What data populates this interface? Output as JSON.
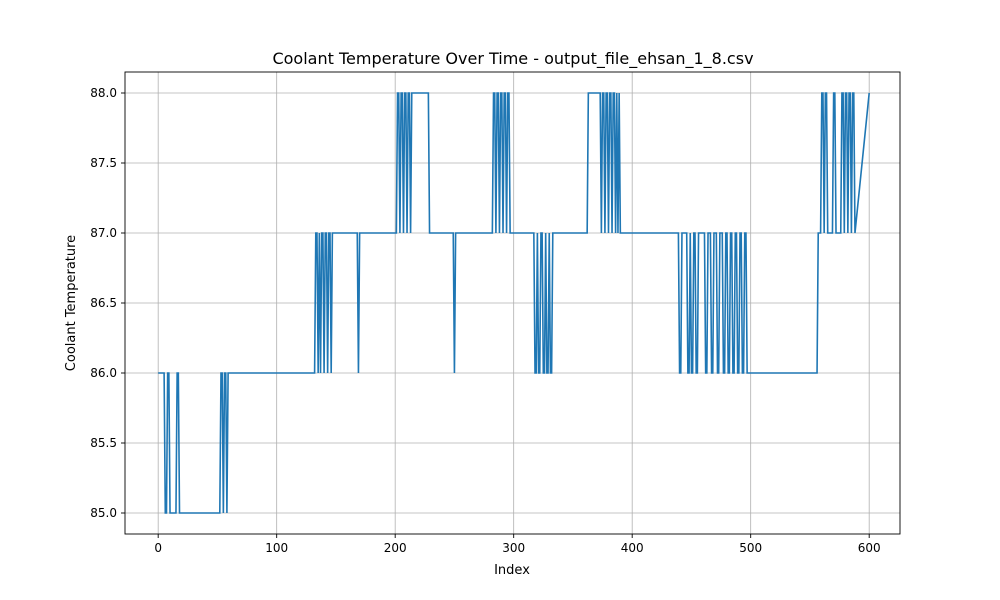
{
  "chart_data": {
    "type": "line",
    "title": "Coolant Temperature Over Time - output_file_ehsan_1_8.csv",
    "xlabel": "Index",
    "ylabel": "Coolant Temperature",
    "xlim": [
      -28,
      626
    ],
    "ylim": [
      84.85,
      88.15
    ],
    "xticks": [
      0,
      100,
      200,
      300,
      400,
      500,
      600
    ],
    "yticks": [
      85.0,
      85.5,
      86.0,
      86.5,
      87.0,
      87.5,
      88.0
    ],
    "xtick_labels": [
      "0",
      "100",
      "200",
      "300",
      "400",
      "500",
      "600"
    ],
    "ytick_labels": [
      "85.0",
      "85.5",
      "86.0",
      "86.5",
      "87.0",
      "87.5",
      "88.0"
    ],
    "grid": true,
    "legend": "none",
    "series": [
      {
        "color": "#1f77b4",
        "x": [
          0,
          5,
          6,
          7,
          8,
          9,
          10,
          15,
          16,
          17,
          18,
          52,
          53,
          54,
          55,
          56,
          57,
          58,
          59,
          60,
          132,
          133,
          134,
          135,
          136,
          137,
          138,
          139,
          140,
          141,
          142,
          143,
          144,
          145,
          146,
          147,
          168,
          169,
          170,
          171,
          201,
          202,
          203,
          204,
          205,
          206,
          207,
          208,
          209,
          210,
          211,
          212,
          213,
          214,
          228,
          229,
          249,
          250,
          251,
          252,
          282,
          283,
          284,
          285,
          286,
          287,
          288,
          289,
          290,
          291,
          292,
          293,
          294,
          295,
          296,
          297,
          298,
          299,
          317,
          318,
          319,
          320,
          321,
          322,
          323,
          324,
          325,
          326,
          327,
          328,
          329,
          330,
          331,
          332,
          333,
          334,
          335,
          336,
          362,
          363,
          373,
          374,
          375,
          376,
          377,
          378,
          379,
          380,
          381,
          382,
          383,
          384,
          385,
          386,
          387,
          388,
          389,
          390,
          439,
          440,
          441,
          442,
          446,
          447,
          448,
          449,
          450,
          451,
          452,
          453,
          454,
          455,
          456,
          457,
          461,
          462,
          463,
          464,
          465,
          466,
          467,
          468,
          469,
          470,
          471,
          472,
          473,
          474,
          475,
          476,
          477,
          478,
          479,
          480,
          481,
          482,
          483,
          484,
          485,
          486,
          487,
          488,
          489,
          490,
          491,
          492,
          493,
          494,
          495,
          496,
          497,
          556,
          557,
          558,
          559,
          560,
          561,
          562,
          563,
          564,
          565,
          566,
          567,
          568,
          569,
          570,
          571,
          572,
          573,
          574,
          575,
          576,
          577,
          578,
          579,
          580,
          581,
          582,
          583,
          584,
          585,
          586,
          587,
          588,
          600
        ],
        "y": [
          86,
          86,
          85,
          85,
          86,
          86,
          85,
          85,
          86,
          86,
          85,
          85,
          86,
          86,
          85,
          86,
          86,
          85,
          86,
          86,
          86,
          87,
          87,
          86,
          87,
          86,
          87,
          87,
          86,
          87,
          87,
          86,
          87,
          87,
          86,
          87,
          87,
          86,
          87,
          87,
          87,
          88,
          88,
          87,
          88,
          88,
          87,
          88,
          88,
          87,
          88,
          88,
          87,
          88,
          88,
          87,
          87,
          86,
          87,
          87,
          87,
          88,
          88,
          87,
          88,
          88,
          87,
          88,
          88,
          87,
          88,
          88,
          87,
          88,
          88,
          87,
          87,
          87,
          87,
          86,
          86,
          87,
          86,
          86,
          87,
          87,
          86,
          86,
          87,
          86,
          86,
          87,
          86,
          86,
          87,
          87,
          87,
          87,
          87,
          88,
          88,
          87,
          88,
          88,
          87,
          88,
          88,
          87,
          88,
          88,
          87,
          88,
          88,
          87,
          88,
          87,
          88,
          87,
          87,
          86,
          86,
          87,
          87,
          86,
          86,
          87,
          86,
          86,
          87,
          87,
          86,
          86,
          87,
          87,
          87,
          86,
          86,
          87,
          87,
          87,
          86,
          86,
          87,
          87,
          87,
          86,
          86,
          87,
          87,
          87,
          86,
          86,
          87,
          87,
          86,
          86,
          87,
          87,
          86,
          86,
          87,
          87,
          86,
          86,
          87,
          87,
          86,
          86,
          87,
          87,
          86,
          86,
          87,
          87,
          87,
          88,
          88,
          87,
          88,
          88,
          87,
          87,
          87,
          87,
          87,
          88,
          88,
          87,
          87,
          87,
          87,
          87,
          88,
          88,
          87,
          88,
          88,
          87,
          88,
          88,
          87,
          88,
          88,
          87,
          88
        ]
      }
    ]
  }
}
